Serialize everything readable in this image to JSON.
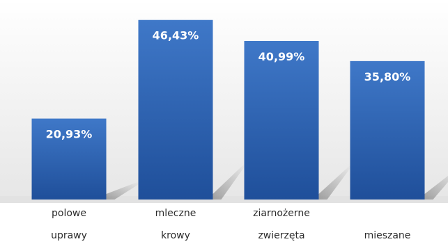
{
  "chart_data": {
    "type": "bar",
    "categories": [
      [
        "polowe",
        "uprawy"
      ],
      [
        "mleczne",
        "krowy"
      ],
      [
        "ziarnożerne",
        "zwierzęta"
      ],
      [
        "mieszane"
      ]
    ],
    "values": [
      20.93,
      46.43,
      40.99,
      35.8
    ],
    "data_labels": [
      "20,93%",
      "46,43%",
      "40,99%",
      "35,80%"
    ],
    "title": "",
    "xlabel": "",
    "ylabel": "",
    "ylim": [
      0,
      48
    ],
    "grid": false,
    "legend": "none",
    "colors": {
      "bar_top": "#3f78c8",
      "bar_bottom": "#1f4f9a",
      "background_top": "#ffffff",
      "background_bottom": "#e6e6e6",
      "shadow": "#9a9a9a",
      "label_text": "#ffffff",
      "category_text": "#2b2b2b"
    }
  }
}
